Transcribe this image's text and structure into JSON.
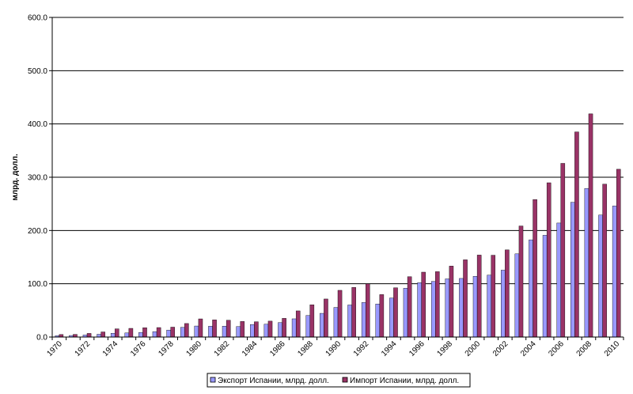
{
  "chart_data": {
    "type": "bar",
    "ylabel": "млрд. долл.",
    "xlabel": "",
    "title": "",
    "ylim": [
      0,
      600
    ],
    "y_ticks": [
      "0.0",
      "100.0",
      "200.0",
      "300.0",
      "400.0",
      "500.0",
      "600.0"
    ],
    "grid": true,
    "legend_position": "bottom",
    "categories": [
      "1970",
      "1971",
      "1972",
      "1973",
      "1974",
      "1975",
      "1976",
      "1977",
      "1978",
      "1979",
      "1980",
      "1981",
      "1982",
      "1983",
      "1984",
      "1985",
      "1986",
      "1987",
      "1988",
      "1989",
      "1990",
      "1991",
      "1992",
      "1993",
      "1994",
      "1995",
      "1996",
      "1997",
      "1998",
      "1999",
      "2000",
      "2001",
      "2002",
      "2003",
      "2004",
      "2005",
      "2006",
      "2007",
      "2008",
      "2009",
      "2010"
    ],
    "x_tick_labels": [
      "1970",
      "",
      "1972",
      "",
      "1974",
      "",
      "1976",
      "",
      "1978",
      "",
      "1980",
      "",
      "1982",
      "",
      "1984",
      "",
      "1986",
      "",
      "1988",
      "",
      "1990",
      "",
      "1992",
      "",
      "1994",
      "",
      "1996",
      "",
      "1998",
      "",
      "2000",
      "",
      "2002",
      "",
      "2004",
      "",
      "2006",
      "",
      "2008",
      "",
      "2010"
    ],
    "series": [
      {
        "name": "Экспорт Испании, млрд. долл.",
        "color": "#9999ff",
        "values": [
          2.4,
          2.9,
          3.8,
          5.2,
          7.1,
          7.7,
          8.7,
          10.2,
          13.1,
          18.2,
          20.7,
          20.3,
          20.5,
          19.7,
          23.5,
          24.2,
          27.2,
          34.2,
          40.5,
          44.5,
          55.6,
          60.2,
          64.8,
          62.1,
          73.3,
          91.6,
          102.0,
          104.4,
          109.2,
          110.0,
          114.0,
          116.2,
          125.6,
          156.2,
          182.5,
          191.0,
          214.0,
          253.0,
          279.0,
          229.0,
          246.0
        ]
      },
      {
        "name": "Импорт Испании, млрд. долл.",
        "color": "#993366",
        "values": [
          4.7,
          5.0,
          6.8,
          9.6,
          15.4,
          16.3,
          17.5,
          17.8,
          18.6,
          25.4,
          34.1,
          32.2,
          31.5,
          29.2,
          28.7,
          29.9,
          35.1,
          49.1,
          60.5,
          71.4,
          87.7,
          93.1,
          99.8,
          79.7,
          92.5,
          113.3,
          121.8,
          122.7,
          133.2,
          145.0,
          153.9,
          153.6,
          163.6,
          208.5,
          258.0,
          289.6,
          326.0,
          385.0,
          419.0,
          287.0,
          315.0
        ]
      }
    ]
  }
}
